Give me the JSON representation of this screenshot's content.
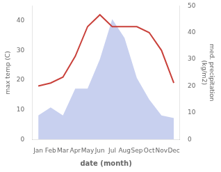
{
  "chart_data": {
    "type": "line",
    "xlabel": "date (month)",
    "ylabel": "max temp (C)",
    "y2label": "med. precipitation\n(kg/m2)",
    "categories": [
      "Jan",
      "Feb",
      "Mar",
      "Apr",
      "May",
      "Jun",
      "Jul",
      "Aug",
      "Sep",
      "Oct",
      "Nov",
      "Dec"
    ],
    "series": [
      {
        "type": "area",
        "color": "#b0bce8",
        "axis": "y2",
        "values": [
          9,
          12,
          9,
          19,
          19,
          30,
          45,
          38,
          23,
          15,
          9,
          8
        ]
      },
      {
        "type": "line",
        "color": "#c9403a",
        "values": [
          18,
          19,
          21,
          28,
          38,
          42,
          38,
          38,
          38,
          36,
          30,
          19
        ]
      }
    ],
    "ylim": [
      0,
      45
    ],
    "yticks": [
      0,
      10,
      20,
      30,
      40
    ],
    "y2lim": [
      0,
      50
    ],
    "y2ticks": [
      0,
      10,
      20,
      30,
      40,
      50
    ],
    "grid": false
  }
}
